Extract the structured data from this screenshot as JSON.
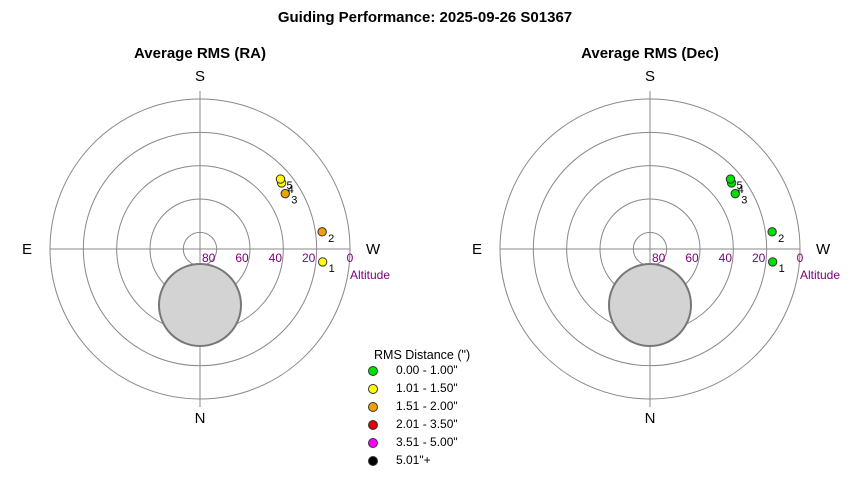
{
  "title": "Guiding Performance: 2025-09-26 S01367",
  "legend": {
    "title": "RMS Distance (\")",
    "items": [
      {
        "label": "0.00 - 1.00\"",
        "color": "#00e000"
      },
      {
        "label": "1.01 - 1.50\"",
        "color": "#ffff00"
      },
      {
        "label": "1.51 - 2.00\"",
        "color": "#f0a000"
      },
      {
        "label": "2.01 - 3.50\"",
        "color": "#e00000"
      },
      {
        "label": "3.51 - 5.00\"",
        "color": "#ff00ff"
      },
      {
        "label": "5.01\"+",
        "color": "#000000"
      }
    ]
  },
  "chart_data": [
    {
      "type": "scatter",
      "projection": "polar-altaz",
      "title": "Average RMS (RA)",
      "directions": {
        "top": "S",
        "bottom": "N",
        "left": "E",
        "right": "W"
      },
      "radial_label": "Altitude",
      "radial_ticks": [
        "80",
        "60",
        "40",
        "20",
        "0"
      ],
      "points": [
        {
          "label": "1",
          "azimuth": 276,
          "altitude": 16,
          "color": "#ffff00"
        },
        {
          "label": "2",
          "azimuth": 262,
          "altitude": 16,
          "color": "#f0a000"
        },
        {
          "label": "3",
          "azimuth": 237,
          "altitude": 29,
          "color": "#f0a000"
        },
        {
          "label": "4",
          "azimuth": 231,
          "altitude": 27,
          "color": "#ffff00"
        },
        {
          "label": "5",
          "azimuth": 229,
          "altitude": 26,
          "color": "#ffff00"
        }
      ]
    },
    {
      "type": "scatter",
      "projection": "polar-altaz",
      "title": "Average RMS (Dec)",
      "directions": {
        "top": "S",
        "bottom": "N",
        "left": "E",
        "right": "W"
      },
      "radial_label": "Altitude",
      "radial_ticks": [
        "80",
        "60",
        "40",
        "20",
        "0"
      ],
      "points": [
        {
          "label": "1",
          "azimuth": 276,
          "altitude": 16,
          "color": "#00e000"
        },
        {
          "label": "2",
          "azimuth": 262,
          "altitude": 16,
          "color": "#00e000"
        },
        {
          "label": "3",
          "azimuth": 237,
          "altitude": 29,
          "color": "#00e000"
        },
        {
          "label": "4",
          "azimuth": 231,
          "altitude": 27,
          "color": "#00e000"
        },
        {
          "label": "5",
          "azimuth": 229,
          "altitude": 26,
          "color": "#00e000"
        }
      ]
    }
  ]
}
